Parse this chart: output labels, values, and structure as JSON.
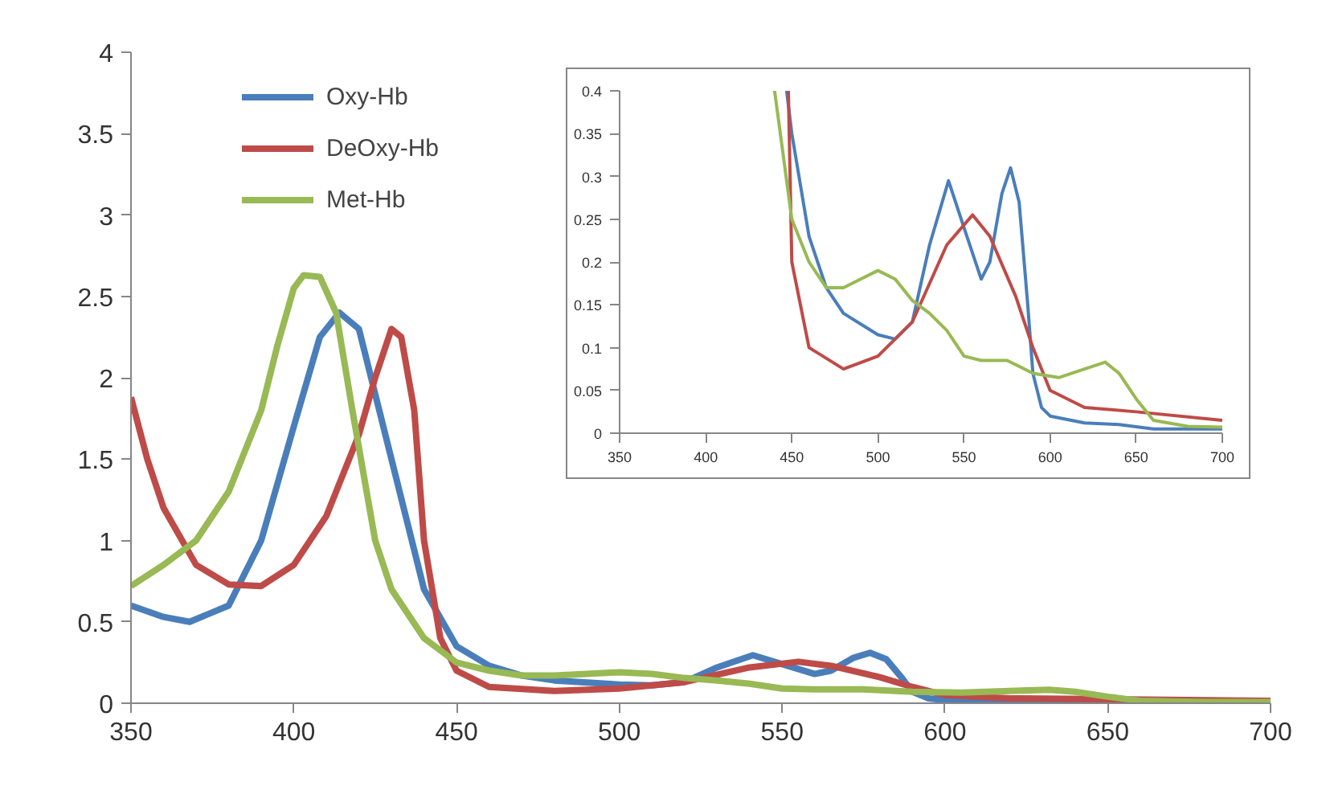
{
  "chart_data": [
    {
      "type": "line",
      "xlim": [
        350,
        700
      ],
      "ylim": [
        0,
        4
      ],
      "xticks": [
        350,
        400,
        450,
        500,
        550,
        600,
        650,
        700
      ],
      "yticks": [
        0,
        0.5,
        1,
        1.5,
        2,
        2.5,
        3,
        3.5,
        4
      ],
      "grid": false,
      "legend": "top left",
      "marker": "none",
      "line_style": "solid",
      "series": [
        {
          "name": "Oxy-Hb",
          "color": "#4a7ebb",
          "x": [
            350,
            360,
            368,
            380,
            390,
            400,
            408,
            414,
            420,
            430,
            440,
            450,
            460,
            470,
            480,
            500,
            510,
            520,
            530,
            541,
            550,
            560,
            565,
            572,
            577,
            582,
            587,
            590,
            595,
            600,
            620,
            640,
            660,
            700
          ],
          "values": [
            0.6,
            0.53,
            0.5,
            0.6,
            1.0,
            1.7,
            2.25,
            2.4,
            2.3,
            1.5,
            0.7,
            0.35,
            0.23,
            0.17,
            0.14,
            0.115,
            0.11,
            0.13,
            0.22,
            0.295,
            0.24,
            0.18,
            0.2,
            0.28,
            0.31,
            0.27,
            0.15,
            0.07,
            0.03,
            0.02,
            0.012,
            0.01,
            0.005,
            0.005
          ]
        },
        {
          "name": "DeOxy-Hb",
          "color": "#be4b48",
          "x": [
            350,
            355,
            360,
            370,
            380,
            390,
            400,
            410,
            420,
            425,
            430,
            433,
            437,
            440,
            445,
            450,
            460,
            480,
            500,
            520,
            540,
            555,
            565,
            580,
            590,
            600,
            620,
            650,
            700
          ],
          "values": [
            1.88,
            1.5,
            1.2,
            0.85,
            0.73,
            0.72,
            0.85,
            1.15,
            1.65,
            2.0,
            2.3,
            2.25,
            1.8,
            1.0,
            0.4,
            0.2,
            0.1,
            0.075,
            0.09,
            0.13,
            0.22,
            0.255,
            0.23,
            0.16,
            0.1,
            0.05,
            0.03,
            0.025,
            0.015
          ]
        },
        {
          "name": "Met-Hb",
          "color": "#98b954",
          "x": [
            350,
            360,
            370,
            380,
            390,
            395,
            400,
            403,
            408,
            413,
            418,
            425,
            430,
            440,
            450,
            460,
            470,
            480,
            490,
            500,
            510,
            520,
            530,
            540,
            550,
            560,
            575,
            590,
            605,
            620,
            632,
            640,
            650,
            660,
            680,
            700
          ],
          "values": [
            0.72,
            0.85,
            1.0,
            1.3,
            1.8,
            2.2,
            2.55,
            2.63,
            2.62,
            2.4,
            1.8,
            1.0,
            0.7,
            0.4,
            0.25,
            0.2,
            0.17,
            0.17,
            0.18,
            0.19,
            0.18,
            0.155,
            0.14,
            0.12,
            0.09,
            0.085,
            0.085,
            0.07,
            0.065,
            0.075,
            0.083,
            0.07,
            0.04,
            0.015,
            0.008,
            0.007
          ]
        }
      ]
    },
    {
      "type": "line",
      "xlim": [
        350,
        700
      ],
      "ylim": [
        0,
        0.4
      ],
      "xticks": [
        350,
        400,
        450,
        500,
        550,
        600,
        650,
        700
      ],
      "yticks": [
        0,
        0.05,
        0.1,
        0.15,
        0.2,
        0.25,
        0.3,
        0.35,
        0.4
      ],
      "grid": false,
      "legend": false,
      "marker": "none",
      "line_style": "solid",
      "series": [
        {
          "color": "#4a7ebb",
          "x": [
            447,
            450,
            460,
            470,
            480,
            500,
            510,
            520,
            530,
            541,
            550,
            560,
            565,
            572,
            577,
            582,
            587,
            590,
            595,
            600,
            620,
            640,
            660,
            700
          ],
          "values": [
            0.4,
            0.35,
            0.23,
            0.17,
            0.14,
            0.115,
            0.11,
            0.13,
            0.22,
            0.295,
            0.24,
            0.18,
            0.2,
            0.28,
            0.31,
            0.27,
            0.15,
            0.07,
            0.03,
            0.02,
            0.012,
            0.01,
            0.005,
            0.005
          ]
        },
        {
          "color": "#be4b48",
          "x": [
            448,
            450,
            460,
            480,
            500,
            520,
            540,
            555,
            565,
            580,
            590,
            600,
            620,
            650,
            700
          ],
          "values": [
            0.4,
            0.2,
            0.1,
            0.075,
            0.09,
            0.13,
            0.22,
            0.255,
            0.23,
            0.16,
            0.1,
            0.05,
            0.03,
            0.025,
            0.015
          ]
        },
        {
          "color": "#98b954",
          "x": [
            440,
            450,
            460,
            470,
            480,
            490,
            500,
            510,
            520,
            530,
            540,
            550,
            560,
            575,
            590,
            605,
            620,
            632,
            640,
            650,
            660,
            680,
            700
          ],
          "values": [
            0.4,
            0.25,
            0.2,
            0.17,
            0.17,
            0.18,
            0.19,
            0.18,
            0.155,
            0.14,
            0.12,
            0.09,
            0.085,
            0.085,
            0.07,
            0.065,
            0.075,
            0.083,
            0.07,
            0.04,
            0.015,
            0.008,
            0.007
          ]
        }
      ]
    }
  ]
}
